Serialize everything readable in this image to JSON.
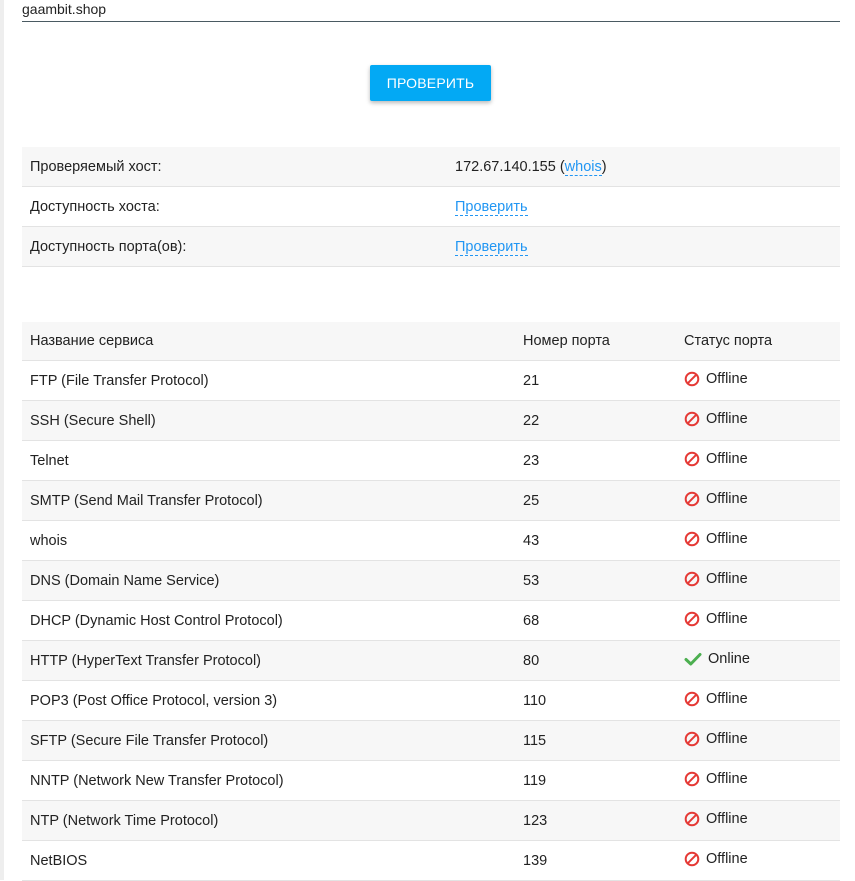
{
  "domain_input": {
    "value": "gaambit.shop"
  },
  "check_button": {
    "label": "ПРОВЕРИТЬ"
  },
  "host_info": {
    "rows": [
      {
        "label": "Проверяемый хост:",
        "ip": "172.67.140.155",
        "link": "whois"
      },
      {
        "label": "Доступность хоста:",
        "link": "Проверить"
      },
      {
        "label": "Доступность порта(ов):",
        "link": "Проверить"
      }
    ]
  },
  "ports_table": {
    "headers": [
      "Название сервиса",
      "Номер порта",
      "Статус порта"
    ],
    "rows": [
      {
        "service": "FTP (File Transfer Protocol)",
        "port": "21",
        "status": "Offline"
      },
      {
        "service": "SSH (Secure Shell)",
        "port": "22",
        "status": "Offline"
      },
      {
        "service": "Telnet",
        "port": "23",
        "status": "Offline"
      },
      {
        "service": "SMTP (Send Mail Transfer Protocol)",
        "port": "25",
        "status": "Offline"
      },
      {
        "service": "whois",
        "port": "43",
        "status": "Offline"
      },
      {
        "service": "DNS (Domain Name Service)",
        "port": "53",
        "status": "Offline"
      },
      {
        "service": "DHCP (Dynamic Host Control Protocol)",
        "port": "68",
        "status": "Offline"
      },
      {
        "service": "HTTP (HyperText Transfer Protocol)",
        "port": "80",
        "status": "Online"
      },
      {
        "service": "POP3 (Post Office Protocol, version 3)",
        "port": "110",
        "status": "Offline"
      },
      {
        "service": "SFTP (Secure File Transfer Protocol)",
        "port": "115",
        "status": "Offline"
      },
      {
        "service": "NNTP (Network New Transfer Protocol)",
        "port": "119",
        "status": "Offline"
      },
      {
        "service": "NTP (Network Time Protocol)",
        "port": "123",
        "status": "Offline"
      },
      {
        "service": "NetBIOS",
        "port": "139",
        "status": "Offline"
      }
    ]
  },
  "colors": {
    "accent": "#03a9f4",
    "link": "#2196f3",
    "offline": "#e53935",
    "online": "#4caf50"
  },
  "icons": {
    "offline": "blocked-icon",
    "online": "check-icon"
  }
}
